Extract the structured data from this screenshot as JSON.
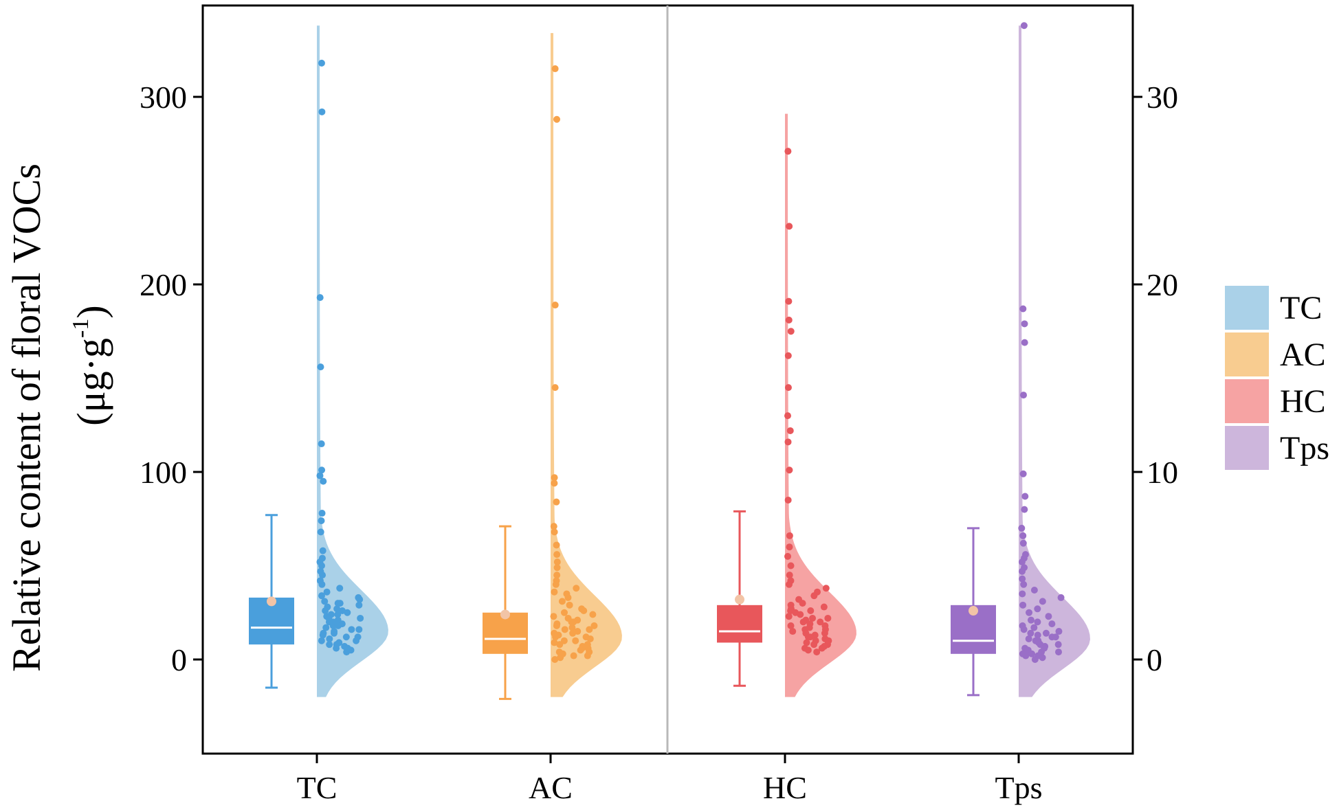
{
  "chart_data": {
    "type": "raincloud",
    "ylabel_line1": "Relative content of floral VOCs",
    "ylabel_line2_prefix": "(μg·g",
    "ylabel_line2_sup": "-1",
    "ylabel_line2_suffix": ")",
    "left_axis": {
      "ylim": [
        -50,
        345
      ],
      "ticks": [
        0,
        100,
        200,
        300
      ],
      "tick_labels": [
        "0",
        "100",
        "200",
        "300"
      ]
    },
    "right_axis": {
      "ylim": [
        -5,
        34.5
      ],
      "ticks": [
        0,
        10,
        20,
        30
      ],
      "tick_labels": [
        "0",
        "10",
        "20",
        "30"
      ]
    },
    "categories": [
      "TC",
      "AC",
      "HC",
      "Tps"
    ],
    "legend": [
      "TC",
      "AC",
      "HC",
      "Tps"
    ],
    "divider_between": [
      "AC",
      "HC"
    ],
    "series": [
      {
        "name": "TC",
        "axis": "left",
        "color": "#4a9fdc",
        "cloud_color": "#aad1e8",
        "mean_color": "#f2c4a6",
        "box": {
          "whisker_low": -15,
          "q1": 8,
          "median": 17,
          "q3": 33,
          "whisker_high": 77,
          "mean": 31
        },
        "violin": {
          "min": -20,
          "max": 338,
          "peak": 15
        },
        "points": [
          318,
          292,
          193,
          156,
          115,
          101,
          98,
          95,
          78,
          74,
          68,
          58,
          54,
          52,
          50,
          47,
          45,
          42,
          40,
          38,
          36,
          34,
          33,
          32,
          31,
          30,
          29,
          28,
          27,
          26,
          25,
          24,
          23,
          22,
          21,
          20,
          19,
          18,
          17,
          16,
          15,
          14,
          13,
          12,
          11,
          10,
          9,
          8,
          7,
          6,
          5,
          4,
          26,
          22,
          18,
          14,
          10,
          8,
          6,
          12,
          16,
          20,
          24,
          30
        ]
      },
      {
        "name": "AC",
        "axis": "left",
        "color": "#f7a24a",
        "cloud_color": "#f8cc90",
        "mean_color": "#f2c4a6",
        "box": {
          "whisker_low": -21,
          "q1": 3,
          "median": 11,
          "q3": 25,
          "whisker_high": 71,
          "mean": 24
        },
        "violin": {
          "min": -20,
          "max": 334,
          "peak": 12
        },
        "points": [
          315,
          288,
          189,
          145,
          97,
          94,
          84,
          71,
          68,
          61,
          56,
          52,
          49,
          45,
          42,
          40,
          38,
          36,
          35,
          33,
          31,
          29,
          27,
          26,
          25,
          24,
          23,
          22,
          21,
          20,
          19,
          18,
          17,
          16,
          15,
          14,
          13,
          12,
          11,
          10,
          9,
          8,
          7,
          6,
          5,
          4,
          3,
          2,
          1,
          0,
          18,
          14,
          10,
          8,
          6,
          4,
          2,
          12,
          16,
          20
        ]
      },
      {
        "name": "HC",
        "axis": "left",
        "color": "#e8575b",
        "cloud_color": "#f6a3a3",
        "mean_color": "#f2c4a6",
        "box": {
          "whisker_low": -14,
          "q1": 9,
          "median": 15,
          "q3": 29,
          "whisker_high": 79,
          "mean": 32
        },
        "violin": {
          "min": -20,
          "max": 291,
          "peak": 14
        },
        "points": [
          271,
          231,
          191,
          181,
          175,
          162,
          145,
          130,
          122,
          116,
          101,
          85,
          66,
          60,
          55,
          50,
          45,
          42,
          40,
          38,
          36,
          34,
          32,
          30,
          29,
          28,
          27,
          26,
          25,
          24,
          23,
          22,
          21,
          20,
          19,
          18,
          17,
          16,
          15,
          14,
          13,
          12,
          11,
          10,
          9,
          8,
          7,
          6,
          5,
          4,
          20,
          16,
          12,
          10,
          8,
          6,
          14,
          18,
          22,
          26
        ]
      },
      {
        "name": "Tps",
        "axis": "right",
        "color": "#9a6fc7",
        "cloud_color": "#cdb6dc",
        "mean_color": "#f2c4a6",
        "box": {
          "whisker_low": -1.9,
          "q1": 0.3,
          "median": 1.0,
          "q3": 2.9,
          "whisker_high": 7.0,
          "mean": 2.6
        },
        "violin": {
          "min": -2.0,
          "max": 33.8,
          "peak": 1.1
        },
        "points": [
          33.8,
          18.7,
          17.9,
          16.9,
          14.1,
          9.9,
          8.7,
          8.0,
          7.0,
          6.6,
          6.2,
          5.6,
          5.4,
          5.2,
          4.9,
          4.7,
          4.3,
          4.0,
          3.7,
          3.5,
          3.3,
          3.1,
          2.9,
          2.7,
          2.5,
          2.3,
          2.1,
          1.9,
          1.7,
          1.5,
          1.4,
          1.3,
          1.2,
          1.1,
          1.0,
          0.9,
          0.8,
          0.7,
          0.6,
          0.5,
          0.4,
          0.3,
          0.2,
          0.1,
          0.0,
          1.8,
          1.6,
          1.2,
          0.8,
          0.6,
          0.4,
          0.2,
          1.0,
          1.4,
          2.0,
          0.3
        ]
      }
    ]
  }
}
